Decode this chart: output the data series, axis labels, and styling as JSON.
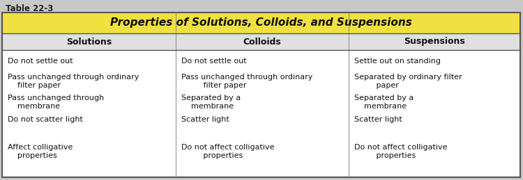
{
  "table_label": "Table 22-3",
  "title": "Properties of Solutions, Colloids, and Suspensions",
  "title_bg": "#F0E040",
  "outer_bg": "#c8c8c8",
  "table_border": "#666666",
  "columns": [
    "Solutions",
    "Colloids",
    "Suspensions"
  ],
  "rows": [
    [
      "Do not settle out",
      "Do not settle out",
      "Settle out on standing"
    ],
    [
      "Pass unchanged through ordinary\n    filter paper",
      "Pass unchanged through ordinary\n         filter paper",
      "Separated by ordinary filter\n         paper"
    ],
    [
      "Pass unchanged through\n    membrane",
      "Separated by a\n    membrane",
      "Separated by a\n    membrane"
    ],
    [
      "Do not scatter light",
      "Scatter light",
      "Scatter light"
    ],
    [
      "Affect colligative\n    properties",
      "Do not affect colligative\n         properties",
      "Do not affect colligative\n         properties"
    ]
  ],
  "figsize": [
    7.5,
    2.59
  ],
  "dpi": 100
}
